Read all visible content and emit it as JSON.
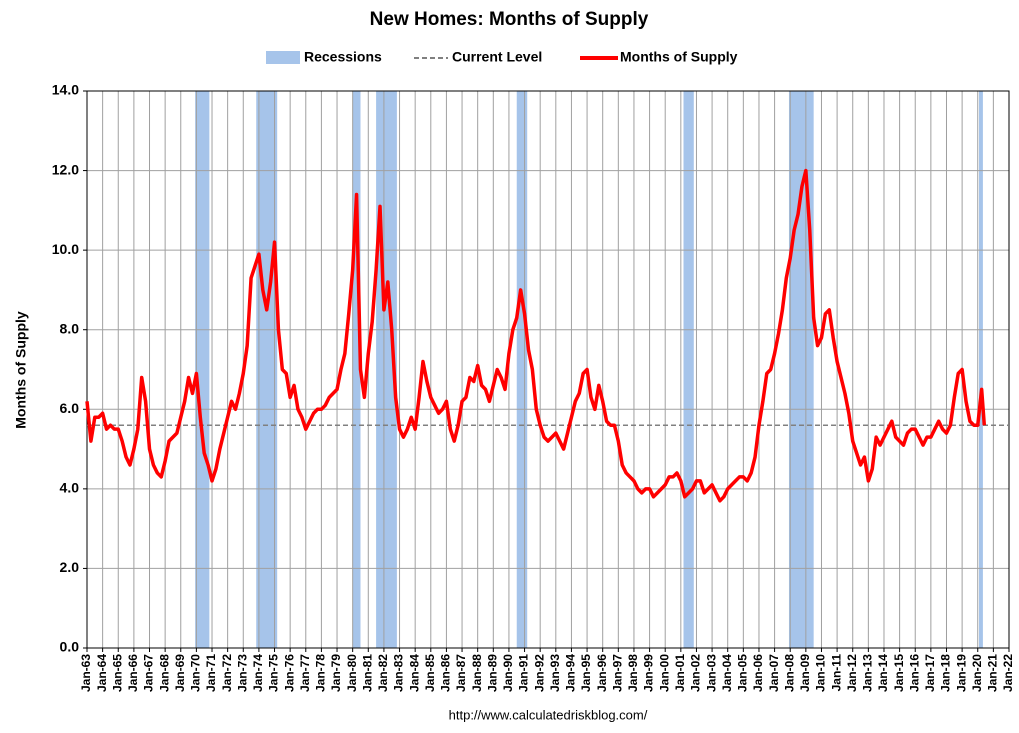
{
  "chart_data": {
    "type": "line",
    "title": "New Homes: Months of Supply",
    "y_label": "Months of Supply",
    "source": "http://www.calculatedriskblog.com/",
    "grid": true,
    "xlim": [
      1963,
      2022
    ],
    "ylim": [
      0,
      14
    ],
    "yticks": [
      {
        "value": 0,
        "label": "0.0"
      },
      {
        "value": 2,
        "label": "2.0"
      },
      {
        "value": 4,
        "label": "4.0"
      },
      {
        "value": 6,
        "label": "6.0"
      },
      {
        "value": 8,
        "label": "8.0"
      },
      {
        "value": 10,
        "label": "10.0"
      },
      {
        "value": 12,
        "label": "12.0"
      },
      {
        "value": 14,
        "label": "14.0"
      }
    ],
    "xticks": [
      {
        "value": 1963,
        "label": "Jan-63"
      },
      {
        "value": 1964,
        "label": "Jan-64"
      },
      {
        "value": 1965,
        "label": "Jan-65"
      },
      {
        "value": 1966,
        "label": "Jan-66"
      },
      {
        "value": 1967,
        "label": "Jan-67"
      },
      {
        "value": 1968,
        "label": "Jan-68"
      },
      {
        "value": 1969,
        "label": "Jan-69"
      },
      {
        "value": 1970,
        "label": "Jan-70"
      },
      {
        "value": 1971,
        "label": "Jan-71"
      },
      {
        "value": 1972,
        "label": "Jan-72"
      },
      {
        "value": 1973,
        "label": "Jan-73"
      },
      {
        "value": 1974,
        "label": "Jan-74"
      },
      {
        "value": 1975,
        "label": "Jan-75"
      },
      {
        "value": 1976,
        "label": "Jan-76"
      },
      {
        "value": 1977,
        "label": "Jan-77"
      },
      {
        "value": 1978,
        "label": "Jan-78"
      },
      {
        "value": 1979,
        "label": "Jan-79"
      },
      {
        "value": 1980,
        "label": "Jan-80"
      },
      {
        "value": 1981,
        "label": "Jan-81"
      },
      {
        "value": 1982,
        "label": "Jan-82"
      },
      {
        "value": 1983,
        "label": "Jan-83"
      },
      {
        "value": 1984,
        "label": "Jan-84"
      },
      {
        "value": 1985,
        "label": "Jan-85"
      },
      {
        "value": 1986,
        "label": "Jan-86"
      },
      {
        "value": 1987,
        "label": "Jan-87"
      },
      {
        "value": 1988,
        "label": "Jan-88"
      },
      {
        "value": 1989,
        "label": "Jan-89"
      },
      {
        "value": 1990,
        "label": "Jan-90"
      },
      {
        "value": 1991,
        "label": "Jan-91"
      },
      {
        "value": 1992,
        "label": "Jan-92"
      },
      {
        "value": 1993,
        "label": "Jan-93"
      },
      {
        "value": 1994,
        "label": "Jan-94"
      },
      {
        "value": 1995,
        "label": "Jan-95"
      },
      {
        "value": 1996,
        "label": "Jan-96"
      },
      {
        "value": 1997,
        "label": "Jan-97"
      },
      {
        "value": 1998,
        "label": "Jan-98"
      },
      {
        "value": 1999,
        "label": "Jan-99"
      },
      {
        "value": 2000,
        "label": "Jan-00"
      },
      {
        "value": 2001,
        "label": "Jan-01"
      },
      {
        "value": 2002,
        "label": "Jan-02"
      },
      {
        "value": 2003,
        "label": "Jan-03"
      },
      {
        "value": 2004,
        "label": "Jan-04"
      },
      {
        "value": 2005,
        "label": "Jan-05"
      },
      {
        "value": 2006,
        "label": "Jan-06"
      },
      {
        "value": 2007,
        "label": "Jan-07"
      },
      {
        "value": 2008,
        "label": "Jan-08"
      },
      {
        "value": 2009,
        "label": "Jan-09"
      },
      {
        "value": 2010,
        "label": "Jan-10"
      },
      {
        "value": 2011,
        "label": "Jan-11"
      },
      {
        "value": 2012,
        "label": "Jan-12"
      },
      {
        "value": 2013,
        "label": "Jan-13"
      },
      {
        "value": 2014,
        "label": "Jan-14"
      },
      {
        "value": 2015,
        "label": "Jan-15"
      },
      {
        "value": 2016,
        "label": "Jan-16"
      },
      {
        "value": 2017,
        "label": "Jan-17"
      },
      {
        "value": 2018,
        "label": "Jan-18"
      },
      {
        "value": 2019,
        "label": "Jan-19"
      },
      {
        "value": 2020,
        "label": "Jan-20"
      },
      {
        "value": 2021,
        "label": "Jan-21"
      },
      {
        "value": 2022,
        "label": "Jan-22"
      }
    ],
    "recessions": {
      "name": "Recessions",
      "color": "#a6c4ea",
      "periods": [
        [
          1969.92,
          1970.83
        ],
        [
          1973.83,
          1975.17
        ],
        [
          1980.0,
          1980.5
        ],
        [
          1981.5,
          1982.83
        ],
        [
          1990.5,
          1991.17
        ],
        [
          2001.17,
          2001.83
        ],
        [
          2007.92,
          2009.5
        ],
        [
          2020.08,
          2020.33
        ]
      ]
    },
    "reference_line": {
      "name": "Current Level",
      "value": 5.6,
      "color": "#808080"
    },
    "x": [
      1963,
      1963.25,
      1963.5,
      1963.75,
      1964,
      1964.25,
      1964.5,
      1964.75,
      1965,
      1965.25,
      1965.5,
      1965.75,
      1966,
      1966.25,
      1966.5,
      1966.75,
      1967,
      1967.25,
      1967.5,
      1967.75,
      1968,
      1968.25,
      1968.5,
      1968.75,
      1969,
      1969.25,
      1969.5,
      1969.75,
      1970,
      1970.25,
      1970.5,
      1970.75,
      1971,
      1971.25,
      1971.5,
      1971.75,
      1972,
      1972.25,
      1972.5,
      1972.75,
      1973,
      1973.25,
      1973.5,
      1973.75,
      1974,
      1974.25,
      1974.5,
      1974.75,
      1975,
      1975.25,
      1975.5,
      1975.75,
      1976,
      1976.25,
      1976.5,
      1976.75,
      1977,
      1977.25,
      1977.5,
      1977.75,
      1978,
      1978.25,
      1978.5,
      1978.75,
      1979,
      1979.25,
      1979.5,
      1979.75,
      1980,
      1980.25,
      1980.5,
      1980.75,
      1981,
      1981.25,
      1981.5,
      1981.75,
      1982,
      1982.25,
      1982.5,
      1982.75,
      1983,
      1983.25,
      1983.5,
      1983.75,
      1984,
      1984.25,
      1984.5,
      1984.75,
      1985,
      1985.25,
      1985.5,
      1985.75,
      1986,
      1986.25,
      1986.5,
      1986.75,
      1987,
      1987.25,
      1987.5,
      1987.75,
      1988,
      1988.25,
      1988.5,
      1988.75,
      1989,
      1989.25,
      1989.5,
      1989.75,
      1990,
      1990.25,
      1990.5,
      1990.75,
      1991,
      1991.25,
      1991.5,
      1991.75,
      1992,
      1992.25,
      1992.5,
      1992.75,
      1993,
      1993.25,
      1993.5,
      1993.75,
      1994,
      1994.25,
      1994.5,
      1994.75,
      1995,
      1995.25,
      1995.5,
      1995.75,
      1996,
      1996.25,
      1996.5,
      1996.75,
      1997,
      1997.25,
      1997.5,
      1997.75,
      1998,
      1998.25,
      1998.5,
      1998.75,
      1999,
      1999.25,
      1999.5,
      1999.75,
      2000,
      2000.25,
      2000.5,
      2000.75,
      2001,
      2001.25,
      2001.5,
      2001.75,
      2002,
      2002.25,
      2002.5,
      2002.75,
      2003,
      2003.25,
      2003.5,
      2003.75,
      2004,
      2004.25,
      2004.5,
      2004.75,
      2005,
      2005.25,
      2005.5,
      2005.75,
      2006,
      2006.25,
      2006.5,
      2006.75,
      2007,
      2007.25,
      2007.5,
      2007.75,
      2008,
      2008.25,
      2008.5,
      2008.75,
      2009,
      2009.25,
      2009.5,
      2009.75,
      2010,
      2010.25,
      2010.5,
      2010.75,
      2011,
      2011.25,
      2011.5,
      2011.75,
      2012,
      2012.25,
      2012.5,
      2012.75,
      2013,
      2013.25,
      2013.5,
      2013.75,
      2014,
      2014.25,
      2014.5,
      2014.75,
      2015,
      2015.25,
      2015.5,
      2015.75,
      2016,
      2016.25,
      2016.5,
      2016.75,
      2017,
      2017.25,
      2017.5,
      2017.75,
      2018,
      2018.25,
      2018.5,
      2018.75,
      2019,
      2019.25,
      2019.5,
      2019.75,
      2020,
      2020.25,
      2020.42
    ],
    "series": [
      {
        "name": "Months of Supply",
        "color": "#ff0000",
        "values": [
          6.2,
          5.2,
          5.8,
          5.8,
          5.9,
          5.5,
          5.6,
          5.5,
          5.5,
          5.2,
          4.8,
          4.6,
          5.0,
          5.5,
          6.8,
          6.2,
          5.0,
          4.6,
          4.4,
          4.3,
          4.7,
          5.2,
          5.3,
          5.4,
          5.8,
          6.2,
          6.8,
          6.4,
          6.9,
          5.8,
          4.9,
          4.6,
          4.2,
          4.5,
          5.0,
          5.4,
          5.8,
          6.2,
          6.0,
          6.4,
          6.9,
          7.6,
          9.3,
          9.6,
          9.9,
          9.0,
          8.5,
          9.2,
          10.2,
          8.0,
          7.0,
          6.9,
          6.3,
          6.6,
          6.0,
          5.8,
          5.5,
          5.7,
          5.9,
          6.0,
          6.0,
          6.1,
          6.3,
          6.4,
          6.5,
          7.0,
          7.4,
          8.4,
          9.5,
          11.4,
          7.0,
          6.3,
          7.4,
          8.2,
          9.5,
          11.1,
          8.5,
          9.2,
          8.0,
          6.3,
          5.5,
          5.3,
          5.5,
          5.8,
          5.5,
          6.3,
          7.2,
          6.7,
          6.3,
          6.1,
          5.9,
          6.0,
          6.2,
          5.5,
          5.2,
          5.6,
          6.2,
          6.3,
          6.8,
          6.7,
          7.1,
          6.6,
          6.5,
          6.2,
          6.6,
          7.0,
          6.8,
          6.5,
          7.4,
          8.0,
          8.3,
          9.0,
          8.4,
          7.5,
          7.0,
          6.0,
          5.6,
          5.3,
          5.2,
          5.3,
          5.4,
          5.2,
          5.0,
          5.4,
          5.8,
          6.2,
          6.4,
          6.9,
          7.0,
          6.3,
          6.0,
          6.6,
          6.2,
          5.7,
          5.6,
          5.6,
          5.2,
          4.6,
          4.4,
          4.3,
          4.2,
          4.0,
          3.9,
          4.0,
          4.0,
          3.8,
          3.9,
          4.0,
          4.1,
          4.3,
          4.3,
          4.4,
          4.2,
          3.8,
          3.9,
          4.0,
          4.2,
          4.2,
          3.9,
          4.0,
          4.1,
          3.9,
          3.7,
          3.8,
          4.0,
          4.1,
          4.2,
          4.3,
          4.3,
          4.2,
          4.4,
          4.8,
          5.6,
          6.2,
          6.9,
          7.0,
          7.4,
          7.9,
          8.5,
          9.3,
          9.8,
          10.5,
          10.9,
          11.6,
          12.0,
          10.5,
          8.3,
          7.6,
          7.8,
          8.4,
          8.5,
          7.8,
          7.2,
          6.8,
          6.4,
          5.9,
          5.2,
          4.9,
          4.6,
          4.8,
          4.2,
          4.5,
          5.3,
          5.1,
          5.3,
          5.5,
          5.7,
          5.3,
          5.2,
          5.1,
          5.4,
          5.5,
          5.5,
          5.3,
          5.1,
          5.3,
          5.3,
          5.5,
          5.7,
          5.5,
          5.4,
          5.6,
          6.3,
          6.9,
          7.0,
          6.2,
          5.7,
          5.6,
          5.6,
          6.5,
          5.6
        ]
      }
    ]
  }
}
